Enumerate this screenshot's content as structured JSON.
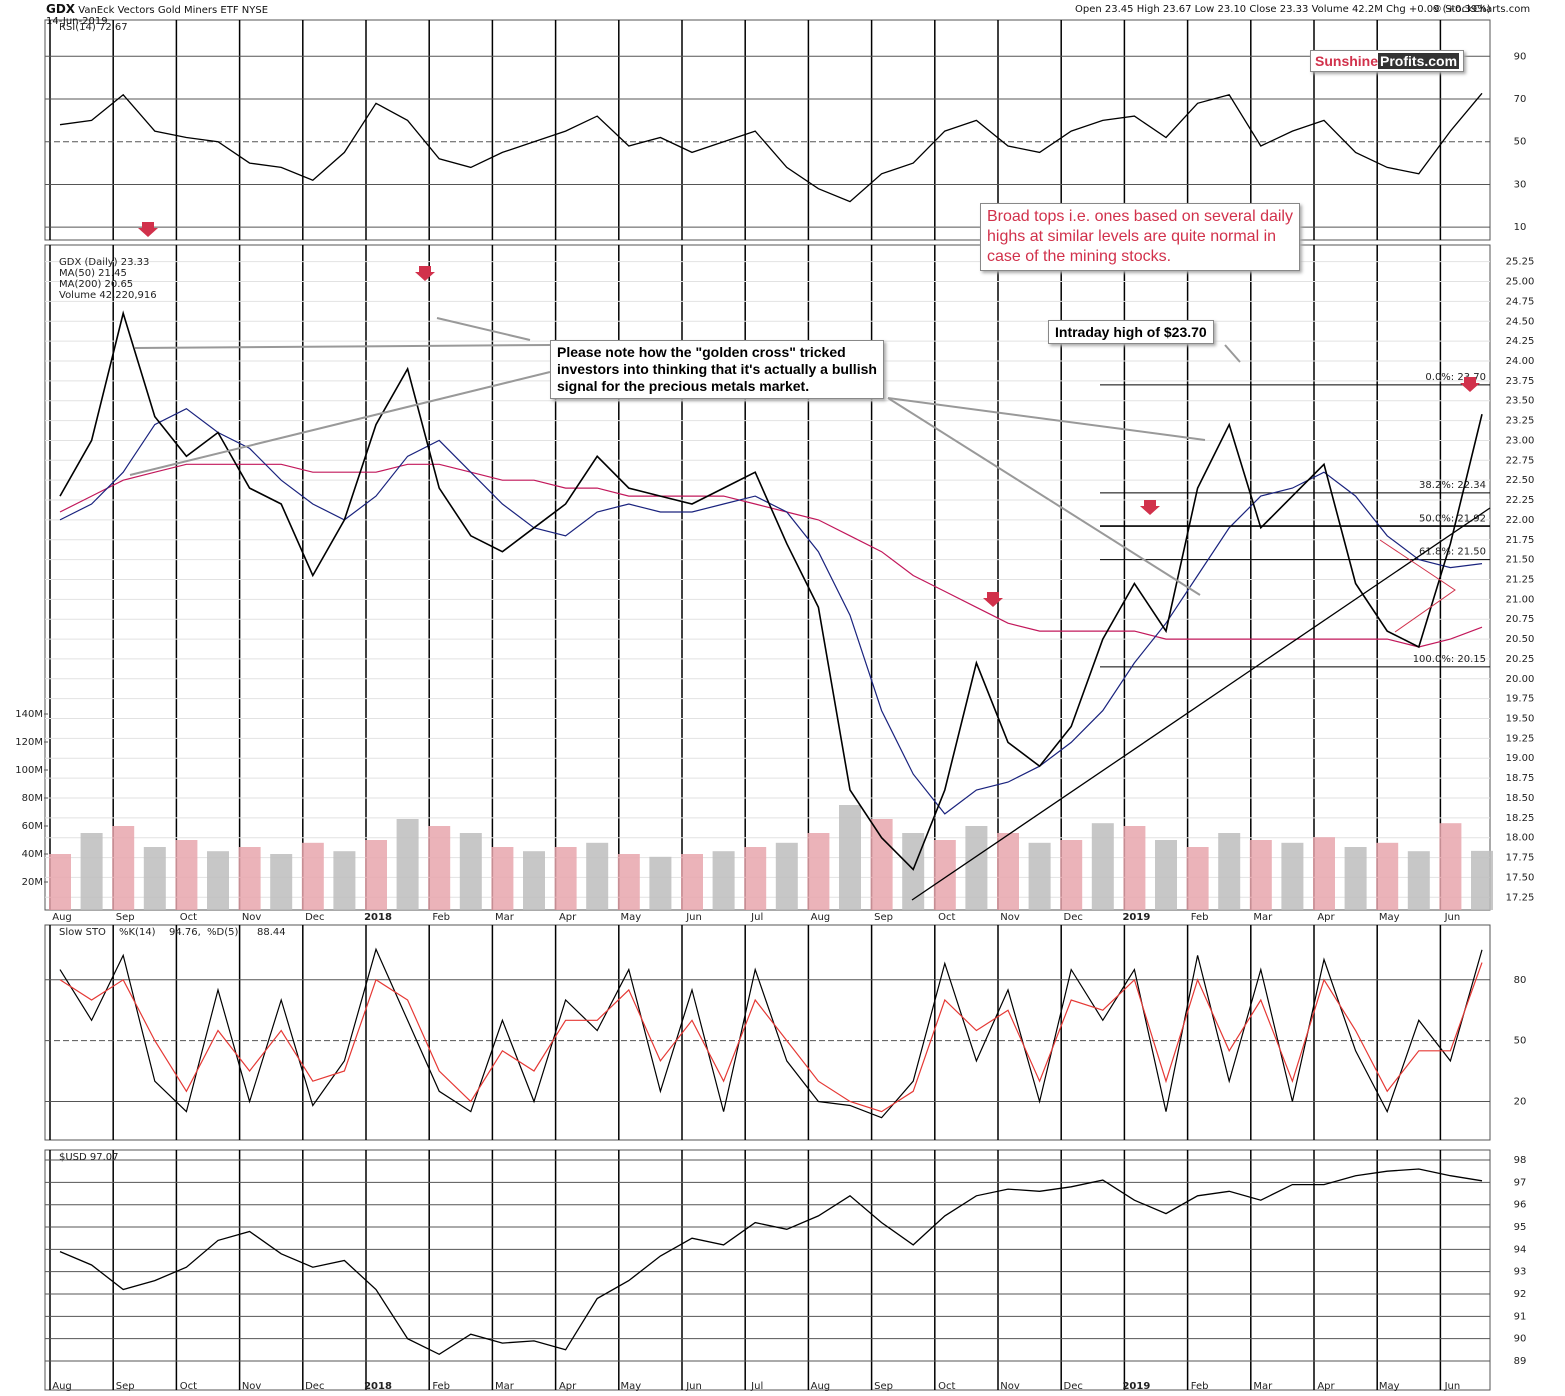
{
  "header": {
    "symbol": "GDX",
    "name": "VanEck Vectors Gold Miners ETF",
    "exchange": "NYSE",
    "date": "14-Jun-2019",
    "quote": "Open 23.45  High 23.67  Low 23.10  Close 23.33  Volume 42.2M  Chg +0.09 (+0.39%)",
    "copyright": "© StockCharts.com"
  },
  "logo": {
    "part1": "Sunshine",
    "part2": "Profits.com"
  },
  "annotations": [
    {
      "lines": [
        "Please note how the \"golden cross\" tricked",
        "investors into thinking that it's actually a bullish",
        "signal for the precious metals market."
      ]
    },
    {
      "lines": [
        "Broad tops i.e. ones based on several daily",
        "highs at similar levels are quite normal in",
        "case of the mining stocks."
      ]
    },
    {
      "lines": [
        "Intraday high of $23.70"
      ]
    }
  ],
  "chart_data": [
    {
      "type": "line",
      "title": "RSI(14) 72.67",
      "color": "#000000",
      "ylim": [
        4,
        107
      ],
      "yticks": [
        10,
        30,
        50,
        70,
        90
      ],
      "values": [
        58,
        60,
        72,
        55,
        52,
        50,
        40,
        38,
        32,
        45,
        68,
        60,
        42,
        38,
        45,
        50,
        55,
        62,
        48,
        52,
        45,
        50,
        55,
        38,
        28,
        22,
        35,
        40,
        55,
        60,
        48,
        45,
        55,
        60,
        62,
        52,
        68,
        72,
        48,
        55,
        60,
        45,
        38,
        35,
        55,
        72.67
      ]
    },
    {
      "type": "line",
      "ylim": [
        17.09,
        25.46
      ],
      "yticks": [
        17.25,
        {
          "value": 17.5,
          "label": "17.50"
        },
        17.75,
        {
          "value": 18,
          "label": "18.00"
        },
        18.25,
        {
          "value": 18.5,
          "label": "18.50"
        },
        18.75,
        {
          "value": 19,
          "label": "19.00"
        },
        19.25,
        {
          "value": 19.5,
          "label": "19.50"
        },
        19.75,
        {
          "value": 20,
          "label": "20.00"
        },
        20.25,
        {
          "value": 20.5,
          "label": "20.50"
        },
        20.75,
        {
          "value": 21,
          "label": "21.00"
        },
        21.25,
        {
          "value": 21.5,
          "label": "21.50"
        },
        21.75,
        {
          "value": 22,
          "label": "22.00"
        },
        22.25,
        {
          "value": 22.5,
          "label": "22.50"
        },
        22.75,
        {
          "value": 23,
          "label": "23.00"
        },
        23.25,
        {
          "value": 23.5,
          "label": "23.50"
        },
        23.75,
        {
          "value": 24,
          "label": "24.00"
        },
        24.25,
        {
          "value": 24.5,
          "label": "24.50"
        },
        24.75,
        {
          "value": 25,
          "label": "25.00"
        },
        25.25
      ],
      "y2lim": [
        0,
        475
      ],
      "y2ticks": [
        {
          "value": 20,
          "label": "20M"
        },
        {
          "value": 40,
          "label": "40M"
        },
        {
          "value": 60,
          "label": "60M"
        },
        {
          "value": 80,
          "label": "80M"
        },
        {
          "value": 100,
          "label": "100M"
        },
        {
          "value": 120,
          "label": "120M"
        },
        {
          "value": 140,
          "label": "140M"
        }
      ],
      "categories": [
        "Aug",
        null,
        "Sep",
        null,
        "Oct",
        null,
        "Nov",
        null,
        "Dec",
        null,
        "2018",
        null,
        "Feb",
        null,
        "Mar",
        null,
        "Apr",
        null,
        "May",
        null,
        "Jun",
        null,
        "Jul",
        null,
        "Aug",
        null,
        "Sep",
        null,
        "Oct",
        null,
        "Nov",
        null,
        "Dec",
        null,
        "2019",
        null,
        "Feb",
        null,
        "Mar",
        null,
        "Apr",
        null,
        "May",
        null,
        "Jun",
        null
      ],
      "series": [
        {
          "name": "Volume 42,220,916",
          "color": "#e8a6ad",
          "axis": "y2",
          "type": "bar",
          "values": [
            40,
            55,
            60,
            45,
            50,
            42,
            45,
            40,
            48,
            42,
            50,
            65,
            60,
            55,
            45,
            42,
            45,
            48,
            40,
            38,
            40,
            42,
            45,
            48,
            55,
            75,
            65,
            55,
            50,
            60,
            55,
            48,
            50,
            62,
            60,
            50,
            45,
            55,
            50,
            48,
            52,
            45,
            48,
            42,
            62,
            42.220916
          ]
        },
        {
          "name": "MA(200) 20.65",
          "color": "#c2185b",
          "values": [
            22.1,
            22.3,
            22.5,
            22.6,
            22.7,
            22.7,
            22.7,
            22.7,
            22.6,
            22.6,
            22.6,
            22.7,
            22.7,
            22.6,
            22.5,
            22.5,
            22.4,
            22.4,
            22.3,
            22.3,
            22.3,
            22.3,
            22.2,
            22.1,
            22,
            21.8,
            21.6,
            21.3,
            21.1,
            20.9,
            20.7,
            20.6,
            20.6,
            20.6,
            20.6,
            20.5,
            20.5,
            20.5,
            20.5,
            20.5,
            20.5,
            20.5,
            20.5,
            20.4,
            20.5,
            20.65
          ]
        },
        {
          "name": "MA(50) 21.45",
          "color": "#1a237e",
          "values": [
            22,
            22.2,
            22.6,
            23.2,
            23.4,
            23.1,
            22.9,
            22.5,
            22.2,
            22,
            22.3,
            22.8,
            23,
            22.6,
            22.2,
            21.9,
            21.8,
            22.1,
            22.2,
            22.1,
            22.1,
            22.2,
            22.3,
            22.1,
            21.6,
            20.8,
            19.6,
            18.8,
            18.3,
            18.6,
            18.7,
            18.9,
            19.2,
            19.6,
            20.2,
            20.7,
            21.3,
            21.9,
            22.3,
            22.4,
            22.6,
            22.3,
            21.8,
            21.5,
            21.4,
            21.45
          ]
        },
        {
          "name": "GDX (Daily) 23.33",
          "color": "#000000",
          "values": [
            22.3,
            23,
            24.6,
            23.3,
            22.8,
            23.1,
            22.4,
            22.2,
            21.3,
            22,
            23.2,
            23.9,
            22.4,
            21.8,
            21.6,
            21.9,
            22.2,
            22.8,
            22.4,
            22.3,
            22.2,
            22.4,
            22.6,
            21.7,
            20.9,
            18.6,
            18,
            17.6,
            18.6,
            20.2,
            19.2,
            18.9,
            19.4,
            20.5,
            21.2,
            20.6,
            22.4,
            23.2,
            21.9,
            22.3,
            22.7,
            21.2,
            20.6,
            20.4,
            21.7,
            23.33
          ]
        }
      ],
      "fib_levels": [
        {
          "value": 23.7,
          "label": "0.0%: 23.70"
        },
        {
          "value": 22.34,
          "label": "38.2%: 22.34"
        },
        {
          "value": 21.92,
          "label": "50.0%: 21.92"
        },
        {
          "value": 21.5,
          "label": "61.8%: 21.50"
        },
        {
          "value": 20.15,
          "label": "100.0%: 20.15"
        }
      ]
    },
    {
      "type": "line",
      "title": "Slow STO",
      "ylim": [
        1,
        107
      ],
      "yticks": [
        20,
        50,
        80
      ],
      "series": [
        {
          "name": "%K(14)",
          "last": "94.76,",
          "color": "#000000",
          "values": [
            85,
            60,
            92,
            30,
            15,
            75,
            20,
            70,
            18,
            40,
            95,
            60,
            25,
            15,
            60,
            20,
            70,
            55,
            85,
            25,
            75,
            15,
            85,
            40,
            20,
            18,
            12,
            30,
            88,
            40,
            75,
            20,
            85,
            60,
            85,
            15,
            92,
            30,
            85,
            20,
            90,
            45,
            15,
            60,
            40,
            94.76
          ]
        },
        {
          "name": "%D(5)",
          "last": "88.44",
          "color": "#e53935",
          "values": [
            80,
            70,
            80,
            50,
            25,
            55,
            35,
            55,
            30,
            35,
            80,
            70,
            35,
            20,
            45,
            35,
            60,
            60,
            75,
            40,
            60,
            30,
            70,
            50,
            30,
            20,
            15,
            25,
            70,
            55,
            65,
            30,
            70,
            65,
            80,
            30,
            80,
            45,
            70,
            30,
            80,
            55,
            25,
            45,
            45,
            88.44
          ]
        }
      ]
    },
    {
      "type": "line",
      "title": "$USD 97.07",
      "color": "#000000",
      "ylim": [
        87.7,
        98.45
      ],
      "yticks": [
        89,
        90,
        91,
        92,
        93,
        94,
        95,
        96,
        97,
        98
      ],
      "values": [
        93.9,
        93.3,
        92.2,
        92.6,
        93.2,
        94.4,
        94.8,
        93.8,
        93.2,
        93.5,
        92.2,
        90,
        89.3,
        90.2,
        89.8,
        89.9,
        89.5,
        91.8,
        92.6,
        93.7,
        94.5,
        94.2,
        95.2,
        94.9,
        95.5,
        96.4,
        95.2,
        94.2,
        95.5,
        96.4,
        96.7,
        96.6,
        96.8,
        97.1,
        96.2,
        95.6,
        96.4,
        96.6,
        96.2,
        96.9,
        96.9,
        97.3,
        97.5,
        97.6,
        97.3,
        97.07
      ]
    }
  ]
}
